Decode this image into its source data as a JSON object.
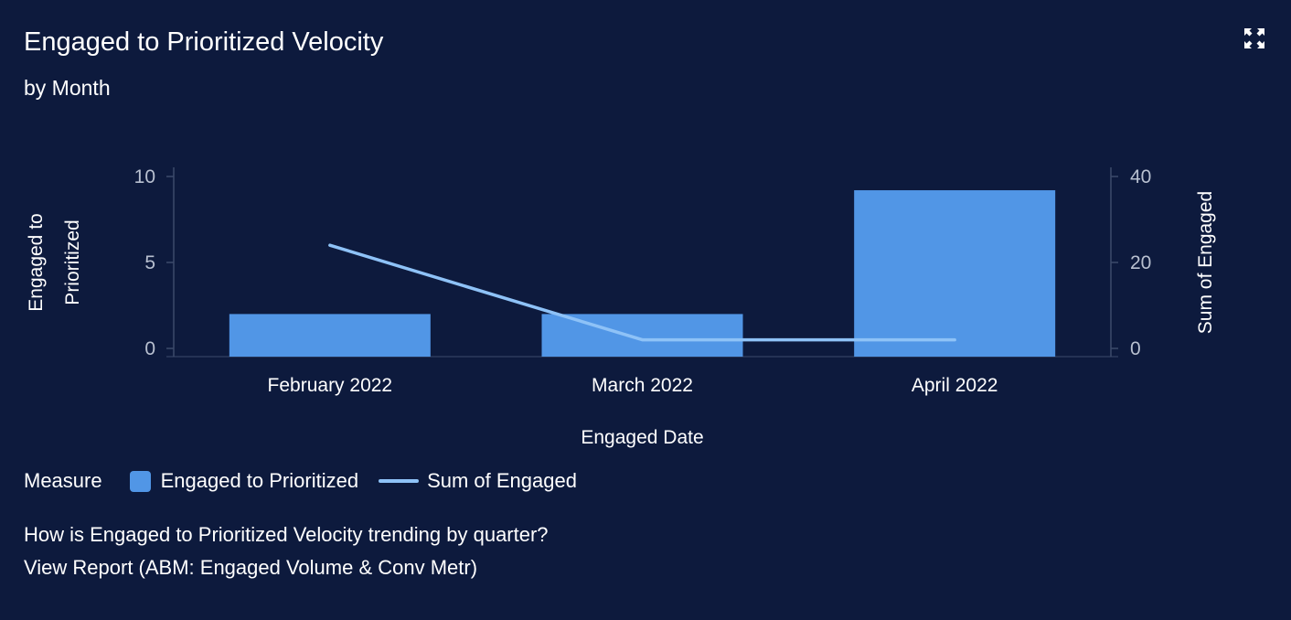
{
  "header": {
    "title": "Engaged to Prioritized Velocity",
    "subtitle": "by Month",
    "expand_icon": "expand-icon"
  },
  "chart_data": {
    "type": "bar",
    "categories": [
      "February 2022",
      "March 2022",
      "April 2022"
    ],
    "series": [
      {
        "name": "Engaged to Prioritized",
        "type": "bar",
        "axis": "left",
        "values": [
          2,
          2,
          9.2
        ],
        "color": "#5196e6"
      },
      {
        "name": "Sum of Engaged",
        "type": "line",
        "axis": "right",
        "values": [
          24,
          2,
          2
        ],
        "color": "#8ec2f7"
      }
    ],
    "xlabel": "Engaged Date",
    "ylabel": "Engaged to Prioritized",
    "ylabel_lines": [
      "Engaged to",
      "Prioritized"
    ],
    "y2label": "Sum of Engaged",
    "ylim": [
      0,
      10
    ],
    "y2lim": [
      0,
      40
    ],
    "yticks": [
      0,
      5,
      10
    ],
    "y2ticks": [
      0,
      20,
      40
    ],
    "grid": false
  },
  "legend": {
    "title": "Measure",
    "items": [
      {
        "label": "Engaged to Prioritized",
        "kind": "box",
        "color": "#5196e6"
      },
      {
        "label": "Sum of Engaged",
        "kind": "line",
        "color": "#8ec2f7"
      }
    ]
  },
  "footer": {
    "question": "How is Engaged to Prioritized Velocity trending by quarter?",
    "link": "View Report (ABM: Engaged Volume & Conv Metr)"
  }
}
